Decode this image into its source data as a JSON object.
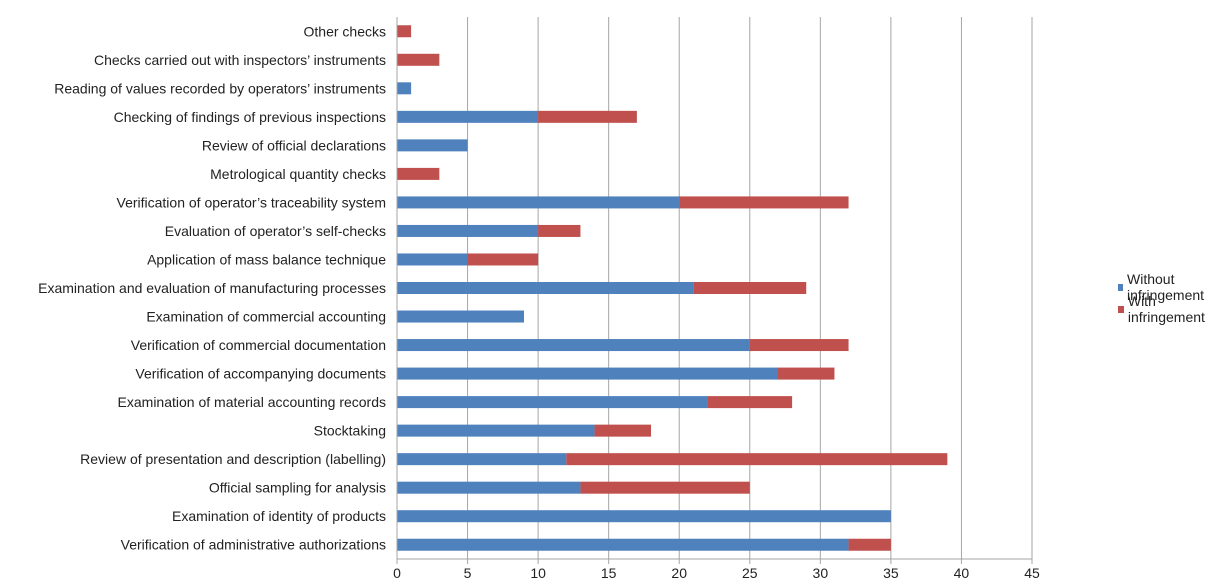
{
  "chart_data": {
    "type": "bar",
    "orientation": "horizontal",
    "stacked": true,
    "title": "",
    "xlabel": "",
    "ylabel": "",
    "xlim": [
      0,
      45
    ],
    "x_ticks": [
      "0",
      "5",
      "10",
      "15",
      "20",
      "25",
      "30",
      "35",
      "40",
      "45"
    ],
    "grid": "vertical",
    "legend_position": "right",
    "categories": [
      "Other checks",
      "Checks carried out with inspectors’ instruments",
      "Reading of values recorded by operators’ instruments",
      "Checking of findings of previous inspections",
      "Review of official declarations",
      "Metrological quantity checks",
      "Verification of operator’s traceability system",
      "Evaluation of operator’s self-checks",
      "Application of mass balance technique",
      "Examination and evaluation of manufacturing processes",
      "Examination of commercial accounting",
      "Verification of commercial documentation",
      "Verification of accompanying documents",
      "Examination of material accounting records",
      "Stocktaking",
      "Review of presentation and description (labelling)",
      "Official sampling for analysis",
      "Examination of identity of products",
      "Verification of administrative authorizations"
    ],
    "series": [
      {
        "name": "Without infringement",
        "color": "#4f81bd",
        "values": [
          0,
          0,
          1,
          10,
          5,
          0,
          20,
          10,
          5,
          21,
          9,
          25,
          27,
          22,
          14,
          12,
          13,
          35,
          32
        ]
      },
      {
        "name": "With infringement",
        "color": "#c0504d",
        "values": [
          1,
          3,
          0,
          7,
          0,
          3,
          12,
          3,
          5,
          8,
          0,
          7,
          4,
          6,
          4,
          27,
          12,
          0,
          3
        ]
      }
    ]
  }
}
